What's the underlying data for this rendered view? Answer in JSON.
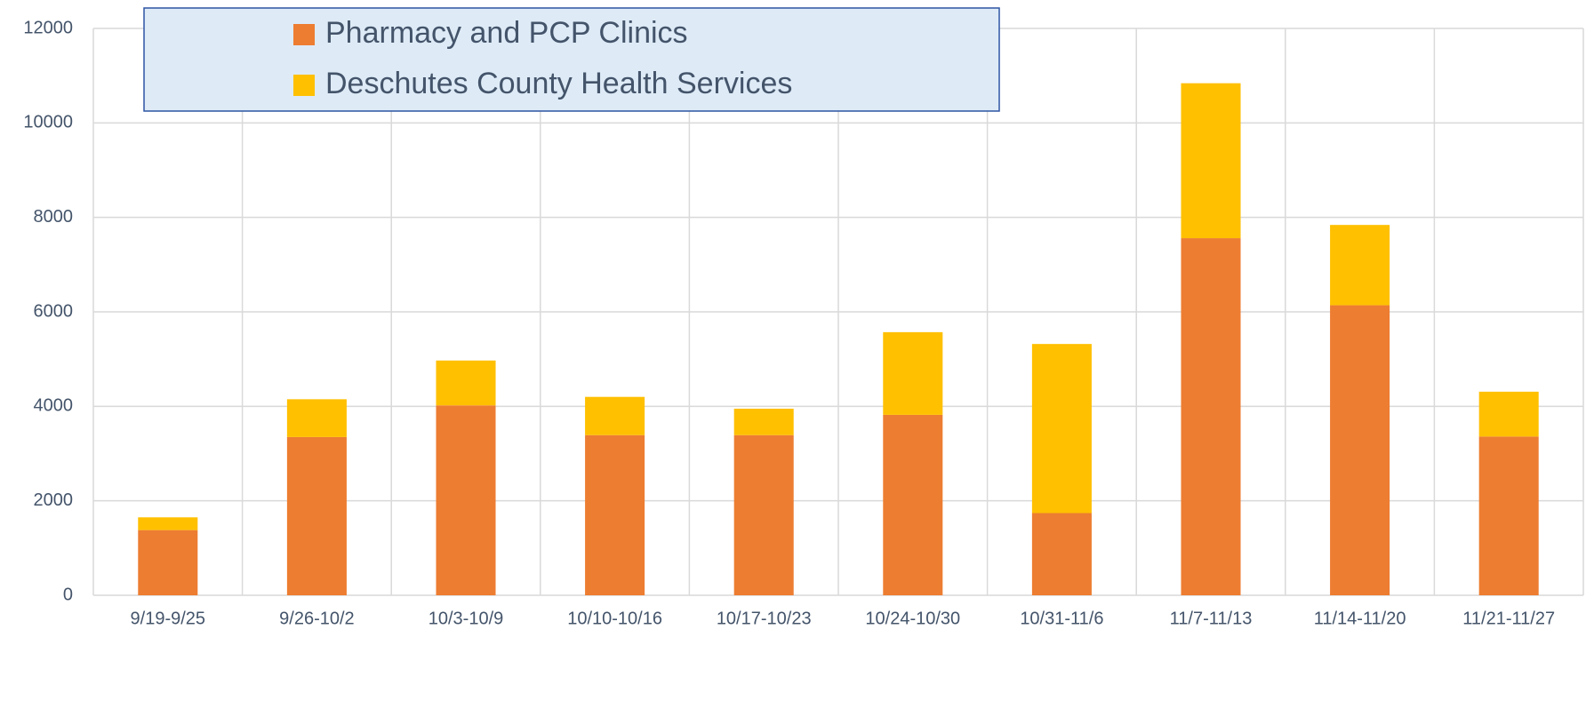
{
  "chart_data": {
    "type": "stacked_bar",
    "categories": [
      "9/19-9/25",
      "9/26-10/2",
      "10/3-10/9",
      "10/10-10/16",
      "10/17-10/23",
      "10/24-10/30",
      "10/31-11/6",
      "11/7-11/13",
      "11/14-11/20",
      "11/21-11/27"
    ],
    "series": [
      {
        "name": "Pharmacy and PCP Clinics",
        "color": "#ed7d31",
        "values": [
          1380,
          3350,
          4020,
          3390,
          3390,
          3820,
          1740,
          7560,
          6140,
          3360
        ]
      },
      {
        "name": "Deschutes County Health Services",
        "color": "#ffc000",
        "values": [
          270,
          800,
          950,
          810,
          560,
          1750,
          3580,
          3280,
          1700,
          950
        ]
      }
    ],
    "ylim": [
      0,
      12000
    ],
    "yticks": [
      0,
      2000,
      4000,
      6000,
      8000,
      10000,
      12000
    ],
    "grid": true,
    "legend": "top-left"
  }
}
